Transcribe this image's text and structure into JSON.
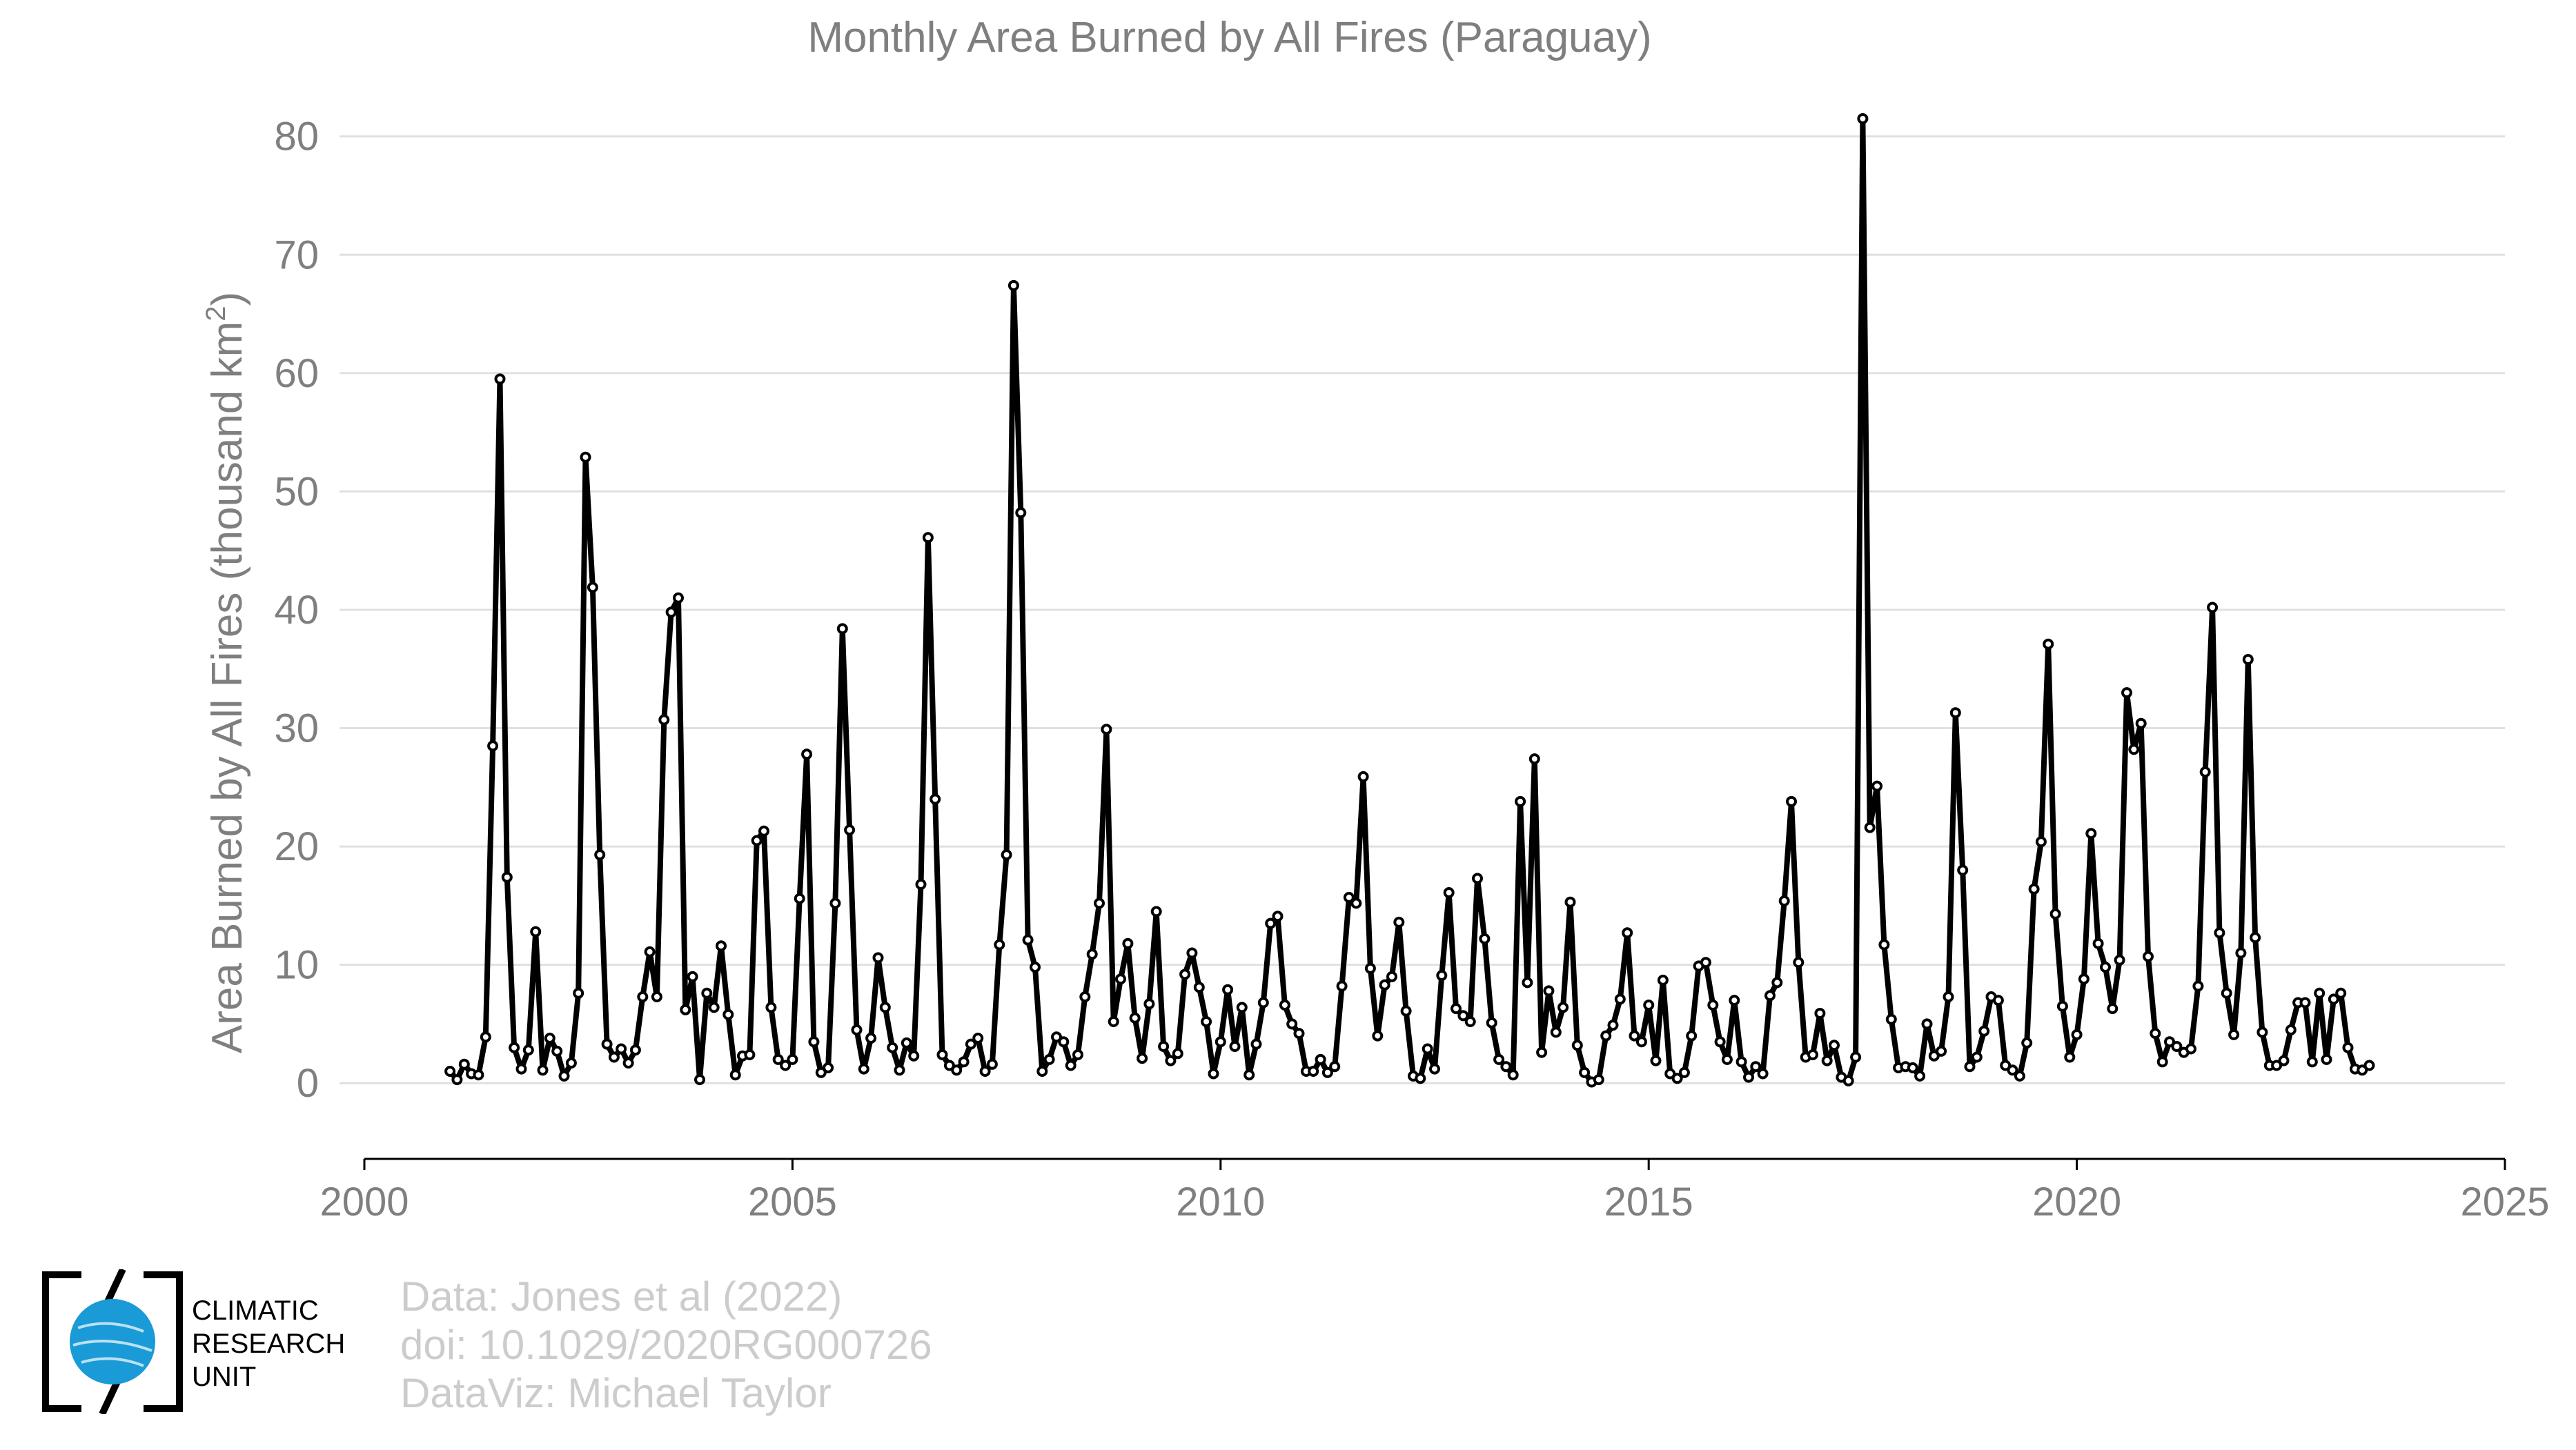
{
  "chart_data": {
    "type": "line",
    "title": "Monthly Area Burned by All Fires (Paraguay)",
    "ylabel": "Area Burned by All Fires (thousand km",
    "ylabel_superscript": "2",
    "ylabel_close": ")",
    "xlabel": "",
    "xlim": [
      2000,
      2025
    ],
    "ylim": [
      -6.4,
      82.2
    ],
    "x_ticks": [
      "2000",
      "2005",
      "2010",
      "2015",
      "2020",
      "2025"
    ],
    "y_ticks": [
      "0",
      "10",
      "20",
      "30",
      "40",
      "50",
      "60",
      "70",
      "80"
    ],
    "grid": true,
    "x_start": "2001-01",
    "x_end": "2023-05",
    "series": [
      {
        "color": "#000000",
        "values": [
          1.0,
          0.3,
          1.6,
          0.8,
          0.7,
          3.9,
          28.5,
          59.5,
          17.4,
          3.0,
          1.2,
          2.8,
          12.8,
          1.1,
          3.8,
          2.7,
          0.6,
          1.7,
          7.6,
          52.9,
          41.9,
          19.3,
          3.3,
          2.2,
          2.9,
          1.7,
          2.8,
          7.3,
          11.1,
          7.3,
          30.7,
          39.8,
          41.0,
          6.2,
          9.0,
          0.3,
          7.6,
          6.4,
          11.6,
          5.8,
          0.7,
          2.3,
          2.4,
          20.5,
          21.3,
          6.4,
          2.0,
          1.5,
          2.0,
          15.6,
          27.8,
          3.5,
          0.9,
          1.3,
          15.2,
          38.4,
          21.4,
          4.5,
          1.2,
          3.8,
          10.6,
          6.4,
          3.0,
          1.1,
          3.4,
          2.3,
          16.8,
          46.1,
          24.0,
          2.4,
          1.5,
          1.1,
          1.8,
          3.3,
          3.8,
          1.0,
          1.6,
          11.7,
          19.3,
          67.4,
          48.2,
          12.1,
          9.8,
          1.0,
          2.0,
          3.9,
          3.5,
          1.5,
          2.4,
          7.3,
          10.9,
          15.2,
          29.9,
          5.2,
          8.8,
          11.8,
          5.5,
          2.1,
          6.7,
          14.5,
          3.1,
          1.9,
          2.5,
          9.2,
          11.0,
          8.1,
          5.2,
          0.8,
          3.5,
          7.9,
          3.1,
          6.4,
          0.7,
          3.3,
          6.8,
          13.5,
          14.1,
          6.6,
          5.0,
          4.2,
          1.0,
          1.0,
          2.0,
          0.9,
          1.4,
          8.2,
          15.7,
          15.2,
          25.9,
          9.7,
          4.0,
          8.3,
          9.0,
          13.6,
          6.1,
          0.6,
          0.4,
          2.9,
          1.2,
          9.1,
          16.1,
          6.3,
          5.7,
          5.2,
          17.3,
          12.2,
          5.1,
          2.0,
          1.4,
          0.7,
          23.8,
          8.5,
          27.4,
          2.6,
          7.8,
          4.3,
          6.4,
          15.3,
          3.2,
          0.9,
          0.1,
          0.3,
          4.0,
          4.9,
          7.1,
          12.7,
          4.0,
          3.5,
          6.6,
          1.9,
          8.7,
          0.8,
          0.4,
          0.9,
          4.0,
          9.9,
          10.2,
          6.6,
          3.5,
          2.0,
          7.0,
          1.8,
          0.5,
          1.4,
          0.8,
          7.4,
          8.5,
          15.4,
          23.8,
          10.2,
          2.2,
          2.4,
          5.9,
          1.9,
          3.2,
          0.5,
          0.2,
          2.2,
          81.5,
          21.6,
          25.1,
          11.7,
          5.4,
          1.3,
          1.4,
          1.3,
          0.6,
          5.0,
          2.3,
          2.7,
          7.3,
          31.3,
          18.0,
          1.4,
          2.2,
          4.4,
          7.3,
          7.0,
          1.5,
          1.1,
          0.6,
          3.4,
          16.4,
          20.4,
          37.1,
          14.3,
          6.5,
          2.2,
          4.1,
          8.8,
          21.1,
          11.8,
          9.8,
          6.3,
          10.4,
          33.0,
          28.2,
          30.4,
          10.7,
          4.2,
          1.8,
          3.5,
          3.1,
          2.6,
          2.9,
          8.2,
          26.3,
          40.2,
          12.7,
          7.6,
          4.1,
          11.0,
          35.8,
          12.3,
          4.3,
          1.5,
          1.5,
          1.9,
          4.5,
          6.8,
          6.8,
          1.8,
          7.6,
          2.0,
          7.1,
          7.6,
          3.0,
          1.2,
          1.1,
          1.5
        ]
      }
    ]
  },
  "logo": {
    "line1": "CLIMATIC",
    "line2": "RESEARCH",
    "line3": "UNIT",
    "icon": "globe-icon",
    "accent": "#1a9ad6"
  },
  "credits": {
    "line1": "Data: Jones et al (2022)",
    "line2": "doi: 10.1029/2020RG000726",
    "line3": "DataViz: Michael Taylor"
  }
}
